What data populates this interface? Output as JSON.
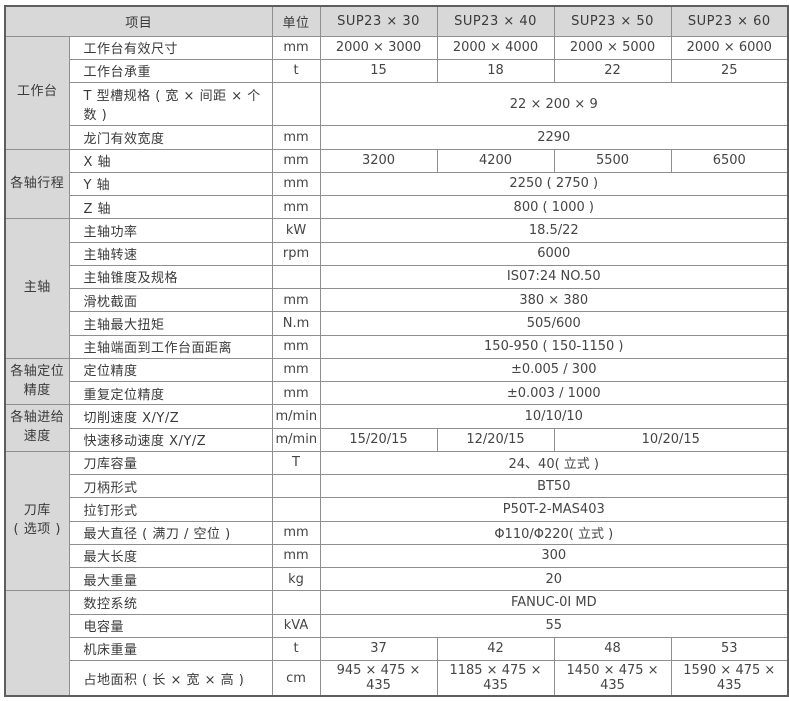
{
  "accent_colors": {
    "header_bg": "#d8d8d8",
    "group_bg": "#d8d8d8",
    "border_inner": "#8f8f8f",
    "border_outer": "#5e5e5e",
    "text": "#3a3a3a"
  },
  "table": {
    "header": {
      "item_label": "项目",
      "unit_label": "单位",
      "models": [
        "SUP23 × 30",
        "SUP23 × 40",
        "SUP23 × 50",
        "SUP23 × 60"
      ]
    },
    "rows": [
      {
        "group": "工作台",
        "group_span": 4,
        "item": "工作台有效尺寸",
        "unit": "mm",
        "values": [
          {
            "text": "2000 × 3000"
          },
          {
            "text": "2000 × 4000"
          },
          {
            "text": "2000 × 5000"
          },
          {
            "text": "2000 × 6000"
          }
        ]
      },
      {
        "item": "工作台承重",
        "unit": "t",
        "values": [
          {
            "text": "15"
          },
          {
            "text": "18"
          },
          {
            "text": "22"
          },
          {
            "text": "25"
          }
        ]
      },
      {
        "item": "T 型槽规格 ( 宽 × 间距 × 个数 )",
        "unit": "",
        "values": [
          {
            "text": "22 × 200 × 9",
            "span": 4
          }
        ]
      },
      {
        "item": "龙门有效宽度",
        "unit": "mm",
        "values": [
          {
            "text": "2290",
            "span": 4
          }
        ]
      },
      {
        "group": "各轴行程",
        "group_span": 3,
        "item": "X 轴",
        "unit": "mm",
        "values": [
          {
            "text": "3200"
          },
          {
            "text": "4200"
          },
          {
            "text": "5500"
          },
          {
            "text": "6500"
          }
        ]
      },
      {
        "item": "Y 轴",
        "unit": "mm",
        "values": [
          {
            "text": "2250 ( 2750 )",
            "span": 4
          }
        ]
      },
      {
        "item": "Z 轴",
        "unit": "mm",
        "values": [
          {
            "text": "800 ( 1000 )",
            "span": 4
          }
        ]
      },
      {
        "group": "主轴",
        "group_span": 6,
        "item": "主轴功率",
        "unit": "kW",
        "values": [
          {
            "text": "18.5/22",
            "span": 4
          }
        ]
      },
      {
        "item": "主轴转速",
        "unit": "rpm",
        "values": [
          {
            "text": "6000",
            "span": 4
          }
        ]
      },
      {
        "item": "主轴锥度及规格",
        "unit": "",
        "values": [
          {
            "text": "IS07:24  NO.50",
            "span": 4
          }
        ]
      },
      {
        "item": "滑枕截面",
        "unit": "mm",
        "values": [
          {
            "text": "380 × 380",
            "span": 4
          }
        ]
      },
      {
        "item": "主轴最大扭矩",
        "unit": "N.m",
        "values": [
          {
            "text": "505/600",
            "span": 4
          }
        ]
      },
      {
        "item": "主轴端面到工作台面距离",
        "unit": "mm",
        "values": [
          {
            "text": "150-950 ( 150-1150 )",
            "span": 4
          }
        ]
      },
      {
        "group": "各轴定位\n精度",
        "group_span": 2,
        "item": "定位精度",
        "unit": "mm",
        "values": [
          {
            "text": "±0.005 / 300",
            "span": 4
          }
        ]
      },
      {
        "item": "重复定位精度",
        "unit": "mm",
        "values": [
          {
            "text": "±0.003 / 1000",
            "span": 4
          }
        ]
      },
      {
        "group": "各轴进给\n速度",
        "group_span": 2,
        "item": "切削速度 X/Y/Z",
        "unit": "m/min",
        "values": [
          {
            "text": "10/10/10",
            "span": 4
          }
        ]
      },
      {
        "item": "快速移动速度 X/Y/Z",
        "unit": "m/min",
        "values": [
          {
            "text": "15/20/15"
          },
          {
            "text": "12/20/15"
          },
          {
            "text": "10/20/15",
            "span": 2
          }
        ]
      },
      {
        "group": "刀库\n( 选项 )",
        "group_span": 6,
        "item": "刀库容量",
        "unit": "T",
        "values": [
          {
            "text": "24、40( 立式 )",
            "span": 4
          }
        ]
      },
      {
        "item": "刀柄形式",
        "unit": "",
        "values": [
          {
            "text": "BT50",
            "span": 4
          }
        ]
      },
      {
        "item": "拉钉形式",
        "unit": "",
        "values": [
          {
            "text": "P50T-2-MAS403",
            "span": 4
          }
        ]
      },
      {
        "item": "最大直径 ( 满刀 / 空位 )",
        "unit": "mm",
        "values": [
          {
            "text": "Φ110/Φ220( 立式 )",
            "span": 4
          }
        ]
      },
      {
        "item": "最大长度",
        "unit": "mm",
        "values": [
          {
            "text": "300",
            "span": 4
          }
        ]
      },
      {
        "item": "最大重量",
        "unit": "kg",
        "values": [
          {
            "text": "20",
            "span": 4
          }
        ]
      },
      {
        "group": "",
        "group_span": 4,
        "item": "数控系统",
        "unit": "",
        "values": [
          {
            "text": "FANUC-0I MD",
            "span": 4
          }
        ]
      },
      {
        "item": "电容量",
        "unit": "kVA",
        "values": [
          {
            "text": "55",
            "span": 4
          }
        ]
      },
      {
        "item": "机床重量",
        "unit": "t",
        "values": [
          {
            "text": "37"
          },
          {
            "text": "42"
          },
          {
            "text": "48"
          },
          {
            "text": "53"
          }
        ]
      },
      {
        "item": "占地面积 ( 长 × 宽 × 高 )",
        "unit": "cm",
        "values": [
          {
            "text": "945 × 475 × 435"
          },
          {
            "text": "1185 × 475 × 435"
          },
          {
            "text": "1450 × 475 × 435"
          },
          {
            "text": "1590 × 475 × 435"
          }
        ]
      }
    ]
  }
}
